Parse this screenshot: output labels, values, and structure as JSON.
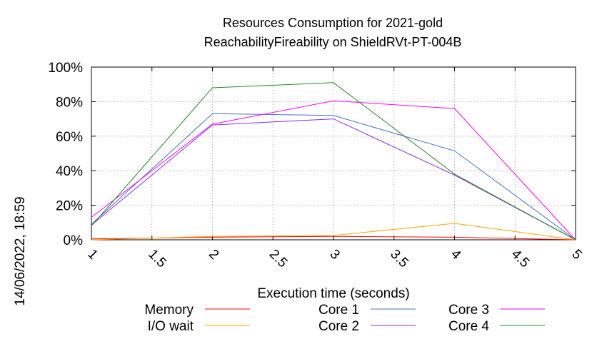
{
  "side_timestamp": "14/06/2022, 18:59",
  "chart_data": {
    "type": "line",
    "title": [
      "Resources Consumption for 2021-gold",
      "ReachabilityFireability on ShieldRVt-PT-004B"
    ],
    "xlabel": "Execution time (seconds)",
    "ylabel": "",
    "xlim": [
      1,
      5
    ],
    "ylim": [
      0,
      100
    ],
    "x_ticks": [
      "1",
      "1.5",
      "2",
      "2.5",
      "3",
      "3.5",
      "4",
      "4.5",
      "5"
    ],
    "y_ticks": [
      "0%",
      "20%",
      "40%",
      "60%",
      "80%",
      "100%"
    ],
    "grid": true,
    "legend_position": "bottom",
    "x": [
      1,
      2,
      3,
      4,
      5
    ],
    "series": [
      {
        "name": "Memory",
        "color": "#ff0000",
        "values": [
          0.5,
          1.5,
          2,
          1.5,
          0
        ]
      },
      {
        "name": "I/O wait",
        "color": "#ffa500",
        "values": [
          0,
          2,
          2.5,
          9.5,
          0
        ]
      },
      {
        "name": "Core 1",
        "color": "#4472c4",
        "values": [
          9,
          73,
          72,
          51.5,
          0
        ]
      },
      {
        "name": "Core 2",
        "color": "#8a2be2",
        "values": [
          8.5,
          66.5,
          70,
          37.5,
          0
        ]
      },
      {
        "name": "Core 3",
        "color": "#ff00ff",
        "values": [
          13,
          67,
          80.5,
          76,
          0
        ]
      },
      {
        "name": "Core 4",
        "color": "#228b22",
        "values": [
          8,
          88,
          91,
          38,
          0
        ]
      }
    ]
  }
}
